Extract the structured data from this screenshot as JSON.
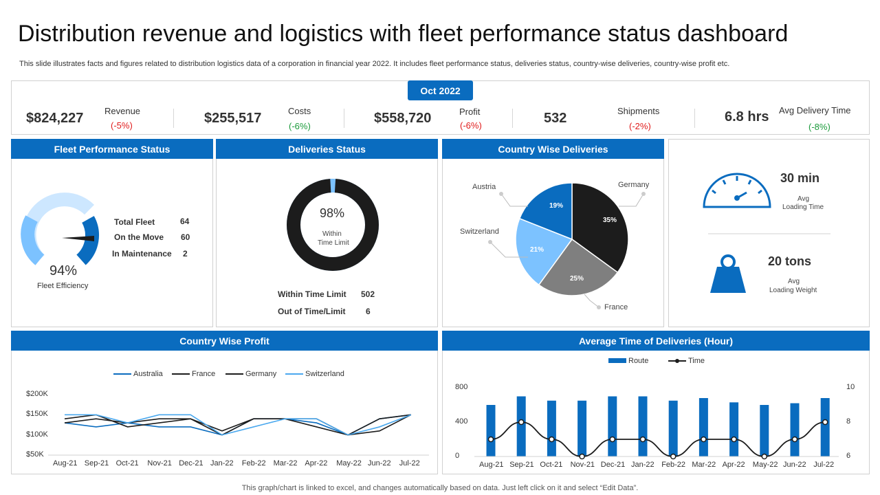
{
  "header": {
    "title": "Distribution revenue and logistics with fleet performance status dashboard",
    "subtitle": "This slide illustrates facts and figures related to distribution logistics data of a corporation in financial year 2022. It includes fleet performance status, deliveries status, country-wise deliveries, country-wise profit etc."
  },
  "kpis": {
    "month": "Oct 2022",
    "items": [
      {
        "value": "$824,227",
        "label": "Revenue",
        "change": "(-5%)"
      },
      {
        "value": "$255,517",
        "label": "Costs",
        "change": "(-6%)"
      },
      {
        "value": "$558,720",
        "label": "Profit",
        "change": "(-6%)"
      },
      {
        "value": "532",
        "label": "Shipments",
        "change": "(-2%)"
      },
      {
        "value": "6.8 hrs",
        "label": "Avg Delivery  Time",
        "change": "(-8%)"
      }
    ]
  },
  "fleet": {
    "title": "Fleet Performance Status",
    "efficiency_value": "94%",
    "efficiency_fraction": 0.94,
    "efficiency_label": "Fleet Efficiency",
    "rows": [
      {
        "label": "Total Fleet",
        "value": "64"
      },
      {
        "label": "On the Move",
        "value": "60"
      },
      {
        "label": "In Maintenance",
        "value": "2"
      }
    ]
  },
  "deliveries": {
    "title": "Deliveries Status",
    "percent": "98%",
    "percent_fraction": 0.98,
    "center_line1": "Within",
    "center_line2": "Time  Limit",
    "rows": [
      {
        "label": "Within Time Limit",
        "value": "502"
      },
      {
        "label": "Out of Time/Limit",
        "value": "6"
      }
    ]
  },
  "country_deliveries": {
    "title": "Country Wise Deliveries",
    "slices": [
      {
        "name": "Germany",
        "value": 35,
        "label": "35%",
        "color": "#1c1c1c"
      },
      {
        "name": "France",
        "value": 25,
        "label": "25%",
        "color": "#7f7f7f"
      },
      {
        "name": "Switzerland",
        "value": 21,
        "label": "21%",
        "color": "#7cc2ff"
      },
      {
        "name": "Austria",
        "value": 19,
        "label": "19%",
        "color": "#0a6cbf"
      }
    ]
  },
  "stats": {
    "loading_time_value": "30 min",
    "loading_time_label1": "Avg",
    "loading_time_label2": "Loading Time",
    "loading_weight_value": "20 tons",
    "loading_weight_label1": "Avg",
    "loading_weight_label2": "Loading Weight"
  },
  "profit": {
    "title": "Country Wise Profit"
  },
  "avg_time": {
    "title": "Average Time of Deliveries (Hour)"
  },
  "colors": {
    "accent": "#0a6cbf",
    "light_blue": "#7cc2ff",
    "dark": "#1c1c1c",
    "grey": "#7f7f7f"
  },
  "chart_data": [
    {
      "type": "line",
      "title": "Country Wise Profit",
      "categories": [
        "Aug-21",
        "Sep-21",
        "Oct-21",
        "Nov-21",
        "Dec-21",
        "Jan-22",
        "Feb-22",
        "Mar-22",
        "Apr-22",
        "May-22",
        "Jun-22",
        "Jul-22"
      ],
      "yticks": [
        "$50K",
        "$100K",
        "$150K",
        "$200K"
      ],
      "ylim": [
        50,
        200
      ],
      "series": [
        {
          "name": "Australia",
          "color": "#0a6cbf",
          "values": [
            130,
            120,
            130,
            120,
            120,
            100,
            140,
            140,
            130,
            100,
            140,
            150
          ]
        },
        {
          "name": "France",
          "color": "#1c1c1c",
          "values": [
            140,
            150,
            120,
            130,
            140,
            110,
            140,
            140,
            120,
            100,
            110,
            150
          ]
        },
        {
          "name": "Germany",
          "color": "#1c1c1c",
          "values": [
            130,
            140,
            130,
            140,
            140,
            100,
            140,
            140,
            140,
            100,
            140,
            150
          ]
        },
        {
          "name": "Switzerland",
          "color": "#4aa8ee",
          "values": [
            150,
            150,
            130,
            150,
            150,
            100,
            120,
            140,
            140,
            100,
            120,
            150
          ]
        }
      ]
    },
    {
      "type": "bar+line",
      "title": "Average Time of Deliveries (Hour)",
      "categories": [
        "Aug-21",
        "Sep-21",
        "Oct-21",
        "Nov-21",
        "Dec-21",
        "Jan-22",
        "Feb-22",
        "Mar-22",
        "Apr-22",
        "May-22",
        "Jun-22",
        "Jul-22"
      ],
      "left_ticks": [
        "0",
        "400",
        "800"
      ],
      "right_ticks": [
        "6",
        "8",
        "10"
      ],
      "ylim_left": [
        0,
        800
      ],
      "ylim_right": [
        6,
        10
      ],
      "series": [
        {
          "name": "Route",
          "axis": "left",
          "color": "#0a6cbf",
          "values": [
            600,
            700,
            650,
            650,
            700,
            700,
            650,
            680,
            630,
            600,
            620,
            680
          ]
        },
        {
          "name": "Time",
          "axis": "right",
          "color": "#1c1c1c",
          "values": [
            7,
            8,
            7,
            6,
            7,
            7,
            6,
            7,
            7,
            6,
            7,
            8
          ]
        }
      ]
    }
  ]
}
